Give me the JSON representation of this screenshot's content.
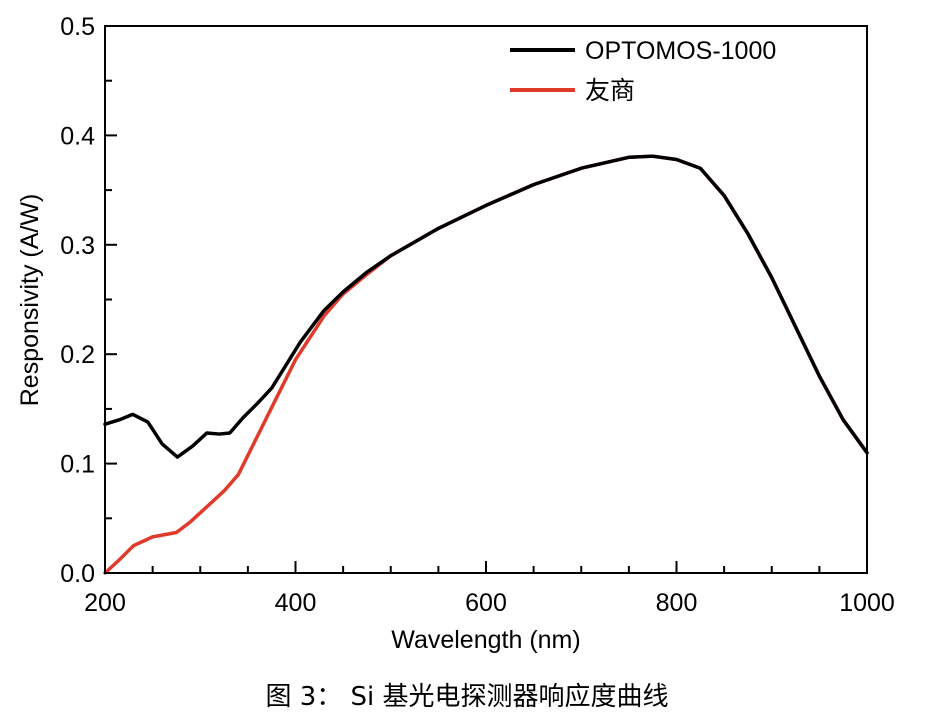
{
  "chart_data": {
    "type": "line",
    "xlabel": "Wavelength (nm)",
    "ylabel": "Responsivity (A/W)",
    "xlim": [
      200,
      1000
    ],
    "ylim": [
      0,
      0.5
    ],
    "xticks": [
      "200",
      "400",
      "600",
      "800",
      "1000"
    ],
    "yticks": [
      "0.0",
      "0.1",
      "0.2",
      "0.3",
      "0.4",
      "0.5"
    ],
    "grid": false,
    "legend_position": "top-right",
    "series": [
      {
        "name": "OPTOMOS-1000",
        "color": "#000000",
        "x": [
          200,
          215,
          229,
          245,
          260,
          276,
          292,
          307,
          320,
          331,
          345,
          360,
          375,
          390,
          405,
          430,
          450,
          475,
          500,
          550,
          600,
          650,
          700,
          750,
          775,
          800,
          825,
          850,
          875,
          900,
          925,
          950,
          975,
          1000
        ],
        "y": [
          0.136,
          0.14,
          0.145,
          0.138,
          0.118,
          0.106,
          0.116,
          0.128,
          0.127,
          0.128,
          0.142,
          0.155,
          0.169,
          0.19,
          0.211,
          0.24,
          0.257,
          0.275,
          0.29,
          0.315,
          0.336,
          0.355,
          0.37,
          0.38,
          0.381,
          0.378,
          0.37,
          0.345,
          0.31,
          0.27,
          0.225,
          0.18,
          0.14,
          0.11
        ]
      },
      {
        "name": "友商",
        "color": "#e03a2c",
        "x": [
          200,
          215,
          230,
          250,
          275,
          290,
          300,
          325,
          340,
          360,
          380,
          400,
          430,
          450,
          475,
          500,
          550,
          600,
          650,
          700,
          750,
          775,
          800,
          825,
          850,
          875,
          900,
          925,
          950,
          975,
          1000
        ],
        "y": [
          0.0,
          0.012,
          0.025,
          0.033,
          0.037,
          0.047,
          0.055,
          0.075,
          0.09,
          0.125,
          0.16,
          0.195,
          0.235,
          0.255,
          0.273,
          0.29,
          0.315,
          0.336,
          0.355,
          0.37,
          0.38,
          0.381,
          0.378,
          0.37,
          0.345,
          0.31,
          0.27,
          0.225,
          0.18,
          0.14,
          0.11
        ]
      }
    ]
  },
  "caption": "图 3：  Si 基光电探测器响应度曲线"
}
